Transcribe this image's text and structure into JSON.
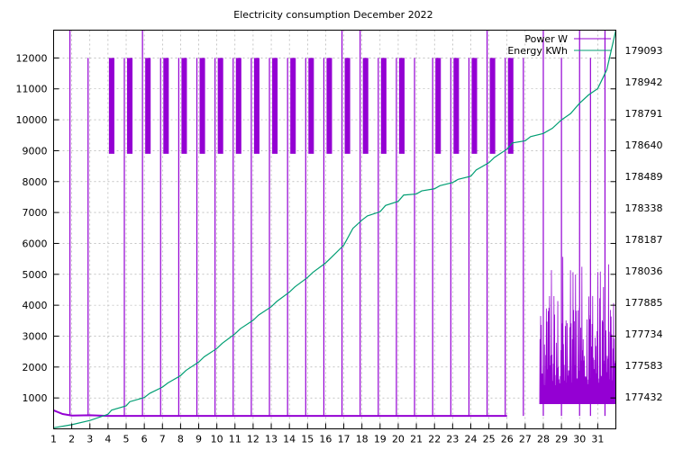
{
  "chart_data": {
    "type": "line",
    "title": "Electricity consumption December 2022",
    "xlabel": "",
    "ylabel": "",
    "xlim": [
      1,
      32
    ],
    "ylim": [
      0,
      12900
    ],
    "y2lim": [
      177280,
      179190
    ],
    "x_ticks": [
      "1",
      "2",
      "3",
      "4",
      "5",
      "6",
      "7",
      "8",
      "9",
      "10",
      "11",
      "12",
      "13",
      "14",
      "15",
      "16",
      "17",
      "18",
      "19",
      "20",
      "21",
      "22",
      "23",
      "24",
      "25",
      "26",
      "27",
      "28",
      "29",
      "30",
      "31"
    ],
    "y_ticks": [
      "1000",
      "2000",
      "3000",
      "4000",
      "5000",
      "6000",
      "7000",
      "8000",
      "9000",
      "10000",
      "11000",
      "12000"
    ],
    "y2_ticks": [
      "177432",
      "177583",
      "177734",
      "177885",
      "178036",
      "178187",
      "178338",
      "178489",
      "178640",
      "178791",
      "178942",
      "179093"
    ],
    "grid": true,
    "legend_position": "top-right",
    "legend": [
      "Power W",
      "Energy KWh"
    ],
    "colors": {
      "power": "#9400d3",
      "energy": "#009e73"
    },
    "series": [
      {
        "name": "Power W",
        "axis": "left",
        "baseline_values": [
          600,
          480,
          430,
          440,
          420,
          420,
          420,
          420,
          420,
          420,
          420,
          420,
          420,
          420,
          420,
          420,
          420,
          420,
          420,
          420,
          420,
          420,
          420,
          420,
          420,
          420,
          420
        ],
        "baseline_x": [
          1,
          1.5,
          2,
          3,
          4,
          5,
          6,
          7,
          8,
          9,
          10,
          11,
          12,
          13,
          14,
          15,
          16,
          17,
          18,
          19,
          20,
          21,
          22,
          23,
          24,
          25,
          26
        ],
        "spikes": [
          {
            "x": 1.9,
            "y": 12900
          },
          {
            "x": 2.9,
            "y": 12000
          },
          {
            "x": 4.9,
            "y": 12000
          },
          {
            "x": 5.9,
            "y": 12900
          },
          {
            "x": 6.9,
            "y": 12000
          },
          {
            "x": 7.9,
            "y": 12000
          },
          {
            "x": 8.9,
            "y": 12000
          },
          {
            "x": 9.9,
            "y": 12000
          },
          {
            "x": 10.9,
            "y": 12000
          },
          {
            "x": 11.9,
            "y": 12000
          },
          {
            "x": 12.9,
            "y": 12000
          },
          {
            "x": 13.9,
            "y": 12000
          },
          {
            "x": 14.9,
            "y": 12000
          },
          {
            "x": 15.9,
            "y": 12000
          },
          {
            "x": 16.9,
            "y": 12900
          },
          {
            "x": 17.9,
            "y": 12900
          },
          {
            "x": 18.9,
            "y": 12000
          },
          {
            "x": 19.9,
            "y": 12000
          },
          {
            "x": 20.9,
            "y": 12000
          },
          {
            "x": 21.9,
            "y": 12000
          },
          {
            "x": 22.9,
            "y": 12000
          },
          {
            "x": 23.9,
            "y": 12000
          },
          {
            "x": 24.9,
            "y": 12900
          },
          {
            "x": 25.9,
            "y": 12000
          },
          {
            "x": 26.9,
            "y": 12000
          },
          {
            "x": 28.0,
            "y": 12900
          },
          {
            "x": 29.0,
            "y": 12000
          },
          {
            "x": 30.0,
            "y": 12900
          },
          {
            "x": 30.6,
            "y": 12000
          },
          {
            "x": 31.4,
            "y": 12900
          }
        ],
        "band_days": [
          4,
          5,
          6,
          7,
          8,
          9,
          10,
          11,
          12,
          13,
          14,
          15,
          16,
          17,
          18,
          19,
          20,
          22,
          23,
          24,
          25,
          26
        ],
        "band_range": [
          8900,
          12000
        ]
      },
      {
        "name": "Energy KWh",
        "axis": "right",
        "x": [
          1,
          2,
          3,
          4,
          4.2,
          5,
          5.2,
          6,
          6.3,
          7,
          7.3,
          8,
          8.3,
          9,
          9.3,
          10,
          10.3,
          11,
          11.3,
          12,
          12.3,
          13,
          13.3,
          14,
          14.3,
          15,
          15.3,
          16,
          16.3,
          17,
          17.5,
          18,
          18.3,
          19,
          19.3,
          20,
          20.3,
          21,
          21.3,
          22,
          22.3,
          23,
          23.3,
          24,
          24.3,
          25,
          25.3,
          26,
          26.3,
          27,
          27.3,
          28,
          28.5,
          29,
          29.5,
          30,
          30.5,
          31,
          31.5,
          32
        ],
        "values": [
          177285,
          177300,
          177320,
          177350,
          177370,
          177390,
          177410,
          177430,
          177450,
          177480,
          177500,
          177535,
          177560,
          177600,
          177625,
          177665,
          177690,
          177735,
          177760,
          177800,
          177825,
          177865,
          177890,
          177935,
          177960,
          178005,
          178030,
          178075,
          178100,
          178160,
          178240,
          178280,
          178300,
          178320,
          178350,
          178370,
          178400,
          178405,
          178420,
          178430,
          178445,
          178460,
          178475,
          178490,
          178520,
          178555,
          178580,
          178620,
          178650,
          178660,
          178680,
          178695,
          178720,
          178760,
          178790,
          178840,
          178880,
          178910,
          179000,
          179190
        ]
      }
    ]
  }
}
